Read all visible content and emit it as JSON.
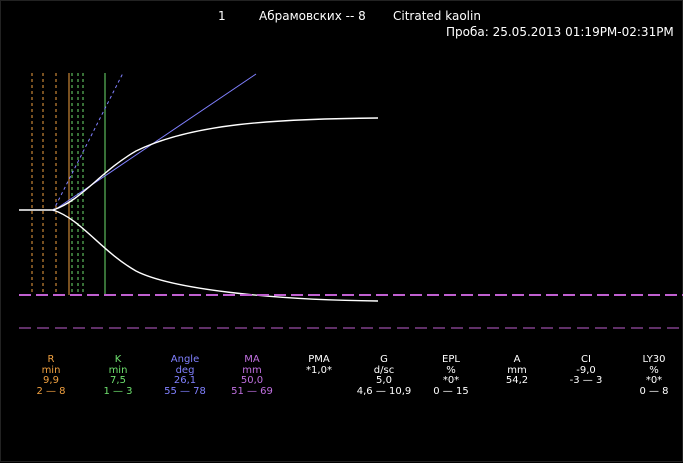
{
  "header": {
    "number": "1",
    "patient": "Абрамовских -- 8",
    "reagent": "Citrated kaolin",
    "sample": "Проба: 25.05.2013 01:19PM-02:31PM"
  },
  "colors": {
    "r": "#f0a040",
    "k": "#6ee06e",
    "angle": "#8080ff",
    "ma": "#c070e0",
    "white": "#ffffff",
    "baseline": "#c060d0"
  },
  "params": [
    {
      "key": "R",
      "name": "R",
      "unit": "min",
      "value": "9,9",
      "range": "2 — 8",
      "color": "#f0a040"
    },
    {
      "key": "K",
      "name": "K",
      "unit": "min",
      "value": "7,5",
      "range": "1 — 3",
      "color": "#6ee06e"
    },
    {
      "key": "Angle",
      "name": "Angle",
      "unit": "deg",
      "value": "26,1",
      "range": "55 — 78",
      "color": "#8080ff"
    },
    {
      "key": "MA",
      "name": "MA",
      "unit": "mm",
      "value": "50,0",
      "range": "51 — 69",
      "color": "#c070e0"
    },
    {
      "key": "PMA",
      "name": "PMA",
      "unit": "",
      "value": "*1,0*",
      "range": "",
      "color": "#ffffff"
    },
    {
      "key": "G",
      "name": "G",
      "unit": "d/sc",
      "value": "5,0",
      "range": "4,6 — 10,9",
      "color": "#ffffff"
    },
    {
      "key": "EPL",
      "name": "EPL",
      "unit": "%",
      "value": "*0*",
      "range": "0 — 15",
      "color": "#ffffff"
    },
    {
      "key": "A",
      "name": "A",
      "unit": "mm",
      "value": "54,2",
      "range": "",
      "color": "#ffffff"
    },
    {
      "key": "CI",
      "name": "CI",
      "unit": "",
      "value": "-9,0",
      "range": "-3 — 3",
      "color": "#ffffff"
    },
    {
      "key": "LY30",
      "name": "LY30",
      "unit": "%",
      "value": "*0*",
      "range": "0 — 8",
      "color": "#ffffff"
    }
  ]
}
